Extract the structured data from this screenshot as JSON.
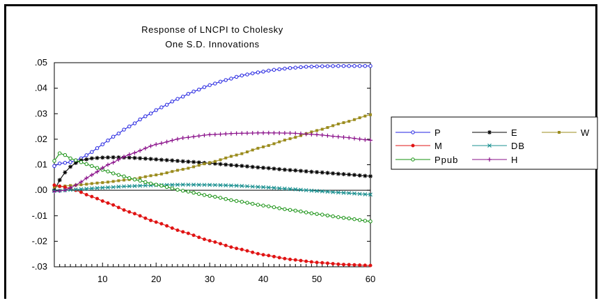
{
  "chart_data": {
    "type": "line",
    "title_line1": "Response of LNCPI to Cholesky",
    "title_line2": "One S.D. Innovations",
    "xlabel": "",
    "ylabel": "",
    "xlim": [
      1,
      60
    ],
    "ylim": [
      -0.03,
      0.05
    ],
    "x_ticks": [
      10,
      20,
      30,
      40,
      50,
      60
    ],
    "y_ticks": [
      {
        "value": 0.05,
        "label": ".05"
      },
      {
        "value": 0.04,
        "label": ".04"
      },
      {
        "value": 0.03,
        "label": ".03"
      },
      {
        "value": 0.02,
        "label": ".02"
      },
      {
        "value": 0.01,
        "label": ".01"
      },
      {
        "value": 0.0,
        "label": ".00"
      },
      {
        "value": -0.01,
        "label": "-.01"
      },
      {
        "value": -0.02,
        "label": "-.02"
      },
      {
        "value": -0.03,
        "label": "-.03"
      }
    ],
    "zero_line": true,
    "legend_position": "right",
    "series": [
      {
        "name": "P",
        "color": "#1f1fe0",
        "marker": "circle-open",
        "points": [
          [
            1,
            0.0095
          ],
          [
            2,
            0.0105
          ],
          [
            4,
            0.011
          ],
          [
            6,
            0.0125
          ],
          [
            8,
            0.015
          ],
          [
            10,
            0.018
          ],
          [
            12,
            0.021
          ],
          [
            15,
            0.025
          ],
          [
            18,
            0.029
          ],
          [
            21,
            0.0325
          ],
          [
            24,
            0.0358
          ],
          [
            27,
            0.0387
          ],
          [
            30,
            0.0412
          ],
          [
            33,
            0.0432
          ],
          [
            36,
            0.045
          ],
          [
            39,
            0.0462
          ],
          [
            42,
            0.0472
          ],
          [
            45,
            0.0479
          ],
          [
            48,
            0.0484
          ],
          [
            51,
            0.0486
          ],
          [
            54,
            0.0487
          ],
          [
            57,
            0.0487
          ],
          [
            60,
            0.0487
          ]
        ]
      },
      {
        "name": "E",
        "color": "#000000",
        "marker": "star",
        "points": [
          [
            1,
            0.0
          ],
          [
            2,
            0.004
          ],
          [
            3,
            0.007
          ],
          [
            4,
            0.0092
          ],
          [
            5,
            0.0107
          ],
          [
            6,
            0.0117
          ],
          [
            8,
            0.0125
          ],
          [
            10,
            0.0128
          ],
          [
            12,
            0.0129
          ],
          [
            15,
            0.0128
          ],
          [
            18,
            0.0124
          ],
          [
            22,
            0.0118
          ],
          [
            26,
            0.0112
          ],
          [
            30,
            0.0106
          ],
          [
            35,
            0.0097
          ],
          [
            40,
            0.0088
          ],
          [
            45,
            0.0079
          ],
          [
            50,
            0.0071
          ],
          [
            55,
            0.0063
          ],
          [
            60,
            0.0055
          ]
        ]
      },
      {
        "name": "W",
        "color": "#9b8c1e",
        "marker": "square",
        "points": [
          [
            1,
            0.0013
          ],
          [
            5,
            0.002
          ],
          [
            10,
            0.003
          ],
          [
            15,
            0.0042
          ],
          [
            20,
            0.006
          ],
          [
            25,
            0.0082
          ],
          [
            30,
            0.0108
          ],
          [
            35,
            0.0138
          ],
          [
            40,
            0.017
          ],
          [
            45,
            0.0202
          ],
          [
            50,
            0.0234
          ],
          [
            55,
            0.0265
          ],
          [
            60,
            0.0296
          ]
        ]
      },
      {
        "name": "M",
        "color": "#e01414",
        "marker": "dot",
        "points": [
          [
            1,
            0.002
          ],
          [
            3,
            0.0012
          ],
          [
            5,
            0.0
          ],
          [
            8,
            -0.0025
          ],
          [
            11,
            -0.005
          ],
          [
            15,
            -0.0085
          ],
          [
            20,
            -0.0125
          ],
          [
            25,
            -0.0163
          ],
          [
            30,
            -0.0198
          ],
          [
            35,
            -0.0228
          ],
          [
            40,
            -0.0253
          ],
          [
            45,
            -0.0271
          ],
          [
            50,
            -0.0283
          ],
          [
            55,
            -0.0291
          ],
          [
            60,
            -0.0295
          ]
        ]
      },
      {
        "name": "DB",
        "color": "#1a9090",
        "marker": "x",
        "points": [
          [
            1,
            -0.0003
          ],
          [
            5,
            0.0003
          ],
          [
            10,
            0.001
          ],
          [
            15,
            0.0016
          ],
          [
            20,
            0.002
          ],
          [
            25,
            0.0022
          ],
          [
            30,
            0.0021
          ],
          [
            35,
            0.0018
          ],
          [
            40,
            0.0012
          ],
          [
            45,
            0.0005
          ],
          [
            50,
            -0.0003
          ],
          [
            55,
            -0.001
          ],
          [
            60,
            -0.0017
          ]
        ]
      },
      {
        "name": "Ppub",
        "color": "#14900f",
        "marker": "circle-open",
        "points": [
          [
            1,
            0.0115
          ],
          [
            2,
            0.0145
          ],
          [
            3,
            0.0138
          ],
          [
            4,
            0.0125
          ],
          [
            6,
            0.011
          ],
          [
            8,
            0.0095
          ],
          [
            10,
            0.008
          ],
          [
            13,
            0.006
          ],
          [
            16,
            0.0042
          ],
          [
            20,
            0.0022
          ],
          [
            25,
            -0.0002
          ],
          [
            30,
            -0.0022
          ],
          [
            35,
            -0.0042
          ],
          [
            40,
            -0.006
          ],
          [
            45,
            -0.0077
          ],
          [
            50,
            -0.0093
          ],
          [
            55,
            -0.0108
          ],
          [
            60,
            -0.0122
          ]
        ]
      },
      {
        "name": "H",
        "color": "#8a108a",
        "marker": "plus",
        "points": [
          [
            1,
            -0.0005
          ],
          [
            3,
            0.0
          ],
          [
            5,
            0.002
          ],
          [
            8,
            0.006
          ],
          [
            11,
            0.01
          ],
          [
            15,
            0.014
          ],
          [
            20,
            0.018
          ],
          [
            25,
            0.0205
          ],
          [
            30,
            0.0218
          ],
          [
            35,
            0.0223
          ],
          [
            40,
            0.0225
          ],
          [
            45,
            0.0224
          ],
          [
            50,
            0.0218
          ],
          [
            55,
            0.0208
          ],
          [
            60,
            0.0196
          ]
        ]
      }
    ],
    "legend": [
      [
        "P",
        "E",
        "W"
      ],
      [
        "M",
        "DB"
      ],
      [
        "Ppub",
        "H"
      ]
    ]
  }
}
